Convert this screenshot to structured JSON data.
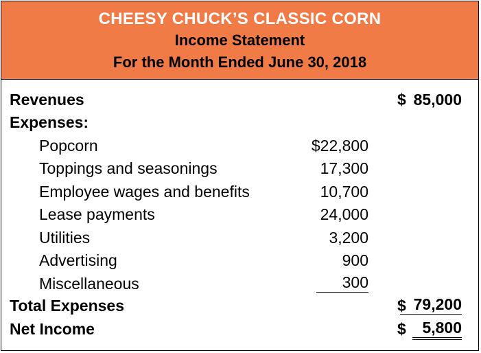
{
  "header": {
    "company": "CHEESY CHUCK’S CLASSIC CORN",
    "title": "Income Statement",
    "period": "For the Month Ended June 30, 2018"
  },
  "revenues": {
    "label": "Revenues",
    "currency": "$",
    "amount": "85,000"
  },
  "expenses": {
    "label": "Expenses:",
    "items": [
      {
        "label": "Popcorn",
        "amount": "$22,800"
      },
      {
        "label": "Toppings and seasonings",
        "amount": "17,300"
      },
      {
        "label": "Employee wages and benefits",
        "amount": "10,700"
      },
      {
        "label": "Lease payments",
        "amount": "24,000"
      },
      {
        "label": "Utilities",
        "amount": "3,200"
      },
      {
        "label": "Advertising",
        "amount": "900"
      },
      {
        "label": "Miscellaneous",
        "amount": "300"
      }
    ]
  },
  "total_expenses": {
    "label": "Total Expenses",
    "currency": "$",
    "amount": "79,200"
  },
  "net_income": {
    "label": "Net Income",
    "currency": "$",
    "amount": "5,800"
  },
  "colors": {
    "header_background": "#f07b47",
    "company_text": "#ffffff"
  }
}
